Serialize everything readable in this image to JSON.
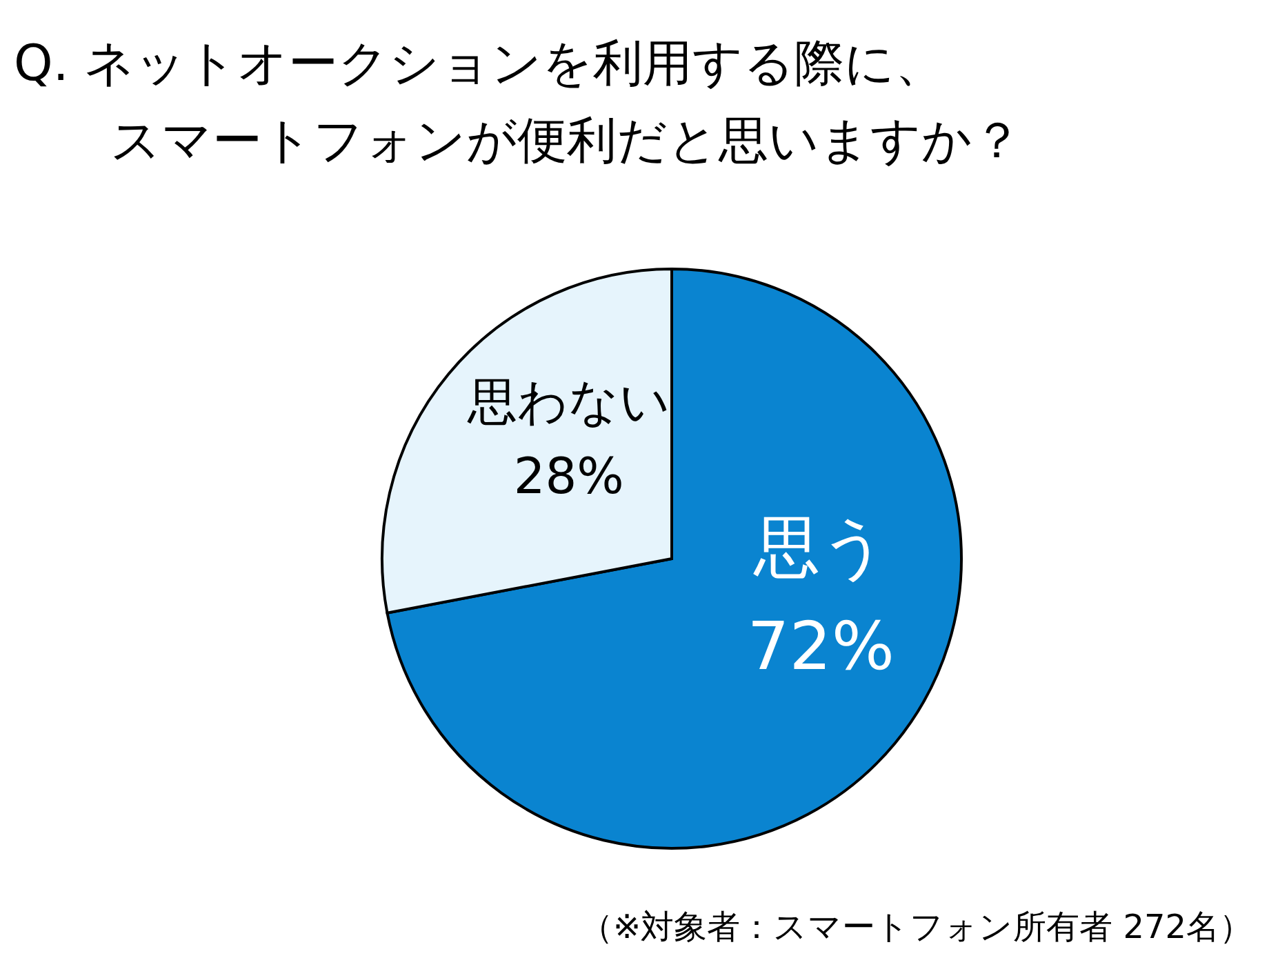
{
  "chart_data": {
    "type": "pie",
    "title": "Q. ネットオークションを利用する際に、",
    "subtitle": "スマートフォンが便利だと思いますか？",
    "categories": [
      "思う",
      "思わない"
    ],
    "values": [
      72,
      28
    ],
    "colors": [
      "#0a84d0",
      "#e6f4fc"
    ],
    "value_labels": [
      "72%",
      "28%"
    ],
    "annotations": [
      "（※対象者：スマートフォン所有者 272名）"
    ]
  }
}
